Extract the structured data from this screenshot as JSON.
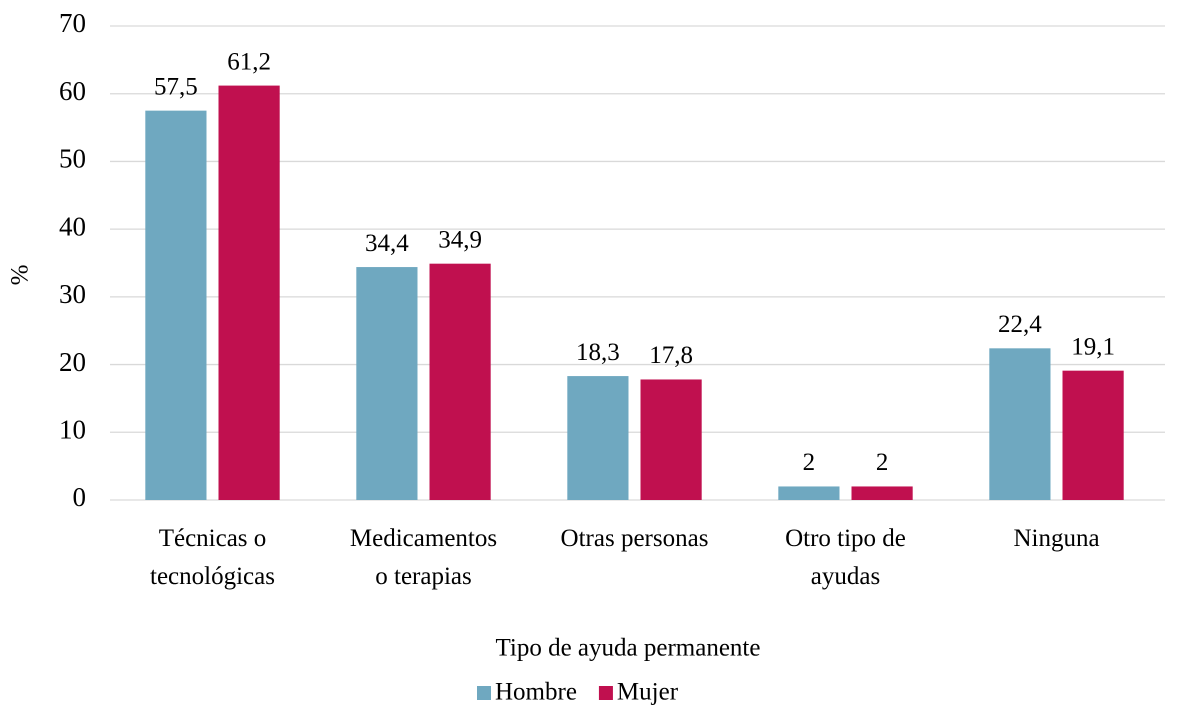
{
  "chart_data": {
    "type": "bar",
    "categories": [
      "Técnicas o\ntecnológicas",
      "Medicamentos\no terapias",
      "Otras personas",
      "Otro tipo de\nayudas",
      "Ninguna"
    ],
    "series": [
      {
        "name": "Hombre",
        "color": "#6fa8c0",
        "values": [
          57.5,
          34.4,
          18.3,
          2,
          22.4
        ],
        "value_labels": [
          "57,5",
          "34,4",
          "18,3",
          "2",
          "22,4"
        ]
      },
      {
        "name": "Mujer",
        "color": "#c0104f",
        "values": [
          61.2,
          34.9,
          17.8,
          2,
          19.1
        ],
        "value_labels": [
          "61,2",
          "34,9",
          "17,8",
          "2",
          "19,1"
        ]
      }
    ],
    "x_label": "Tipo de ayuda permanente",
    "y_label": "%",
    "ylim": [
      0,
      70
    ],
    "yticks": [
      0,
      10,
      20,
      30,
      40,
      50,
      60,
      70
    ],
    "grid": true,
    "legend": "bottom"
  }
}
